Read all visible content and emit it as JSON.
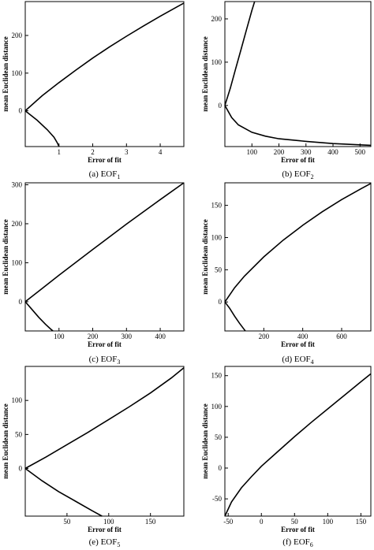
{
  "chart_data": [
    {
      "type": "line",
      "caption": "(a) EOF",
      "caption_sub": "1",
      "xlabel": "Error of fit",
      "ylabel": "mean Euclidean distance",
      "xlim": [
        0,
        4.7
      ],
      "ylim": [
        -95,
        290
      ],
      "xticks": [
        1,
        2,
        3,
        4
      ],
      "yticks": [
        0,
        100,
        200
      ],
      "series": [
        {
          "x": [
            0,
            0.5,
            1,
            1.5,
            2,
            2.5,
            3,
            3.5,
            4,
            4.5,
            4.7
          ],
          "y": [
            0,
            40,
            75,
            108,
            140,
            170,
            198,
            225,
            251,
            276,
            286
          ]
        },
        {
          "x": [
            0,
            0.35,
            0.65,
            0.85,
            0.95,
            1.0
          ],
          "y": [
            0,
            -25,
            -50,
            -70,
            -85,
            -95
          ]
        }
      ]
    },
    {
      "type": "line",
      "caption": "(b) EOF",
      "caption_sub": "2",
      "xlabel": "Error of fit",
      "ylabel": "mean Euclidean distance",
      "xlim": [
        0,
        540
      ],
      "ylim": [
        -95,
        240
      ],
      "xticks": [
        100,
        200,
        300,
        400,
        500
      ],
      "yticks": [
        0,
        100,
        200
      ],
      "series": [
        {
          "x": [
            0,
            20,
            40,
            60,
            80,
            100,
            110
          ],
          "y": [
            0,
            40,
            85,
            130,
            175,
            220,
            240
          ]
        },
        {
          "x": [
            0,
            25,
            50,
            100,
            150,
            200,
            300,
            400,
            500,
            540
          ],
          "y": [
            0,
            -28,
            -45,
            -62,
            -71,
            -77,
            -83,
            -88,
            -91,
            -92
          ]
        }
      ]
    },
    {
      "type": "line",
      "caption": "(c) EOF",
      "caption_sub": "3",
      "xlabel": "Error of fit",
      "ylabel": "mean Euclidean distance",
      "xlim": [
        0,
        470
      ],
      "ylim": [
        -75,
        305
      ],
      "xticks": [
        100,
        200,
        300,
        400
      ],
      "yticks": [
        0,
        100,
        200,
        300
      ],
      "series": [
        {
          "x": [
            0,
            50,
            100,
            200,
            300,
            400,
            470
          ],
          "y": [
            0,
            34,
            68,
            134,
            199,
            262,
            305
          ]
        },
        {
          "x": [
            0,
            20,
            40,
            60,
            75,
            82
          ],
          "y": [
            0,
            -20,
            -40,
            -58,
            -70,
            -75
          ]
        }
      ]
    },
    {
      "type": "line",
      "caption": "(d) EOF",
      "caption_sub": "4",
      "xlabel": "Error of fit",
      "ylabel": "mean Euclidean distance",
      "xlim": [
        0,
        750
      ],
      "ylim": [
        -45,
        185
      ],
      "xticks": [
        200,
        400,
        600
      ],
      "yticks": [
        0,
        50,
        100,
        150
      ],
      "series": [
        {
          "x": [
            0,
            50,
            100,
            200,
            300,
            400,
            500,
            600,
            700,
            750
          ],
          "y": [
            0,
            22,
            40,
            70,
            96,
            119,
            140,
            159,
            176,
            184
          ]
        },
        {
          "x": [
            0,
            25,
            50,
            75,
            95,
            105
          ],
          "y": [
            0,
            -10,
            -22,
            -33,
            -41,
            -45
          ]
        }
      ]
    },
    {
      "type": "line",
      "caption": "(e) EOF",
      "caption_sub": "5",
      "xlabel": "Error of fit",
      "ylabel": "mean Euclidean distance",
      "xlim": [
        0,
        190
      ],
      "ylim": [
        -70,
        150
      ],
      "xticks": [
        50,
        100,
        150
      ],
      "yticks": [
        0,
        50,
        100
      ],
      "series": [
        {
          "x": [
            0,
            25,
            50,
            75,
            100,
            125,
            150,
            175,
            190
          ],
          "y": [
            0,
            17,
            35,
            53,
            72,
            91,
            111,
            133,
            148
          ]
        },
        {
          "x": [
            0,
            20,
            40,
            60,
            80,
            92
          ],
          "y": [
            0,
            -18,
            -34,
            -48,
            -62,
            -70
          ]
        }
      ]
    },
    {
      "type": "line",
      "caption": "(f) EOF",
      "caption_sub": "6",
      "xlabel": "Error of fit",
      "ylabel": "mean Euclidean distance",
      "xlim": [
        -55,
        165
      ],
      "ylim": [
        -78,
        165
      ],
      "xticks": [
        -50,
        0,
        50,
        100,
        150
      ],
      "yticks": [
        -50,
        0,
        50,
        100,
        150
      ],
      "series": [
        {
          "x": [
            -55,
            -45,
            -30,
            -15,
            0,
            25,
            50,
            75,
            100,
            125,
            150,
            165
          ],
          "y": [
            -78,
            -55,
            -32,
            -14,
            3,
            27,
            51,
            74,
            96,
            118,
            140,
            153
          ]
        }
      ]
    }
  ]
}
